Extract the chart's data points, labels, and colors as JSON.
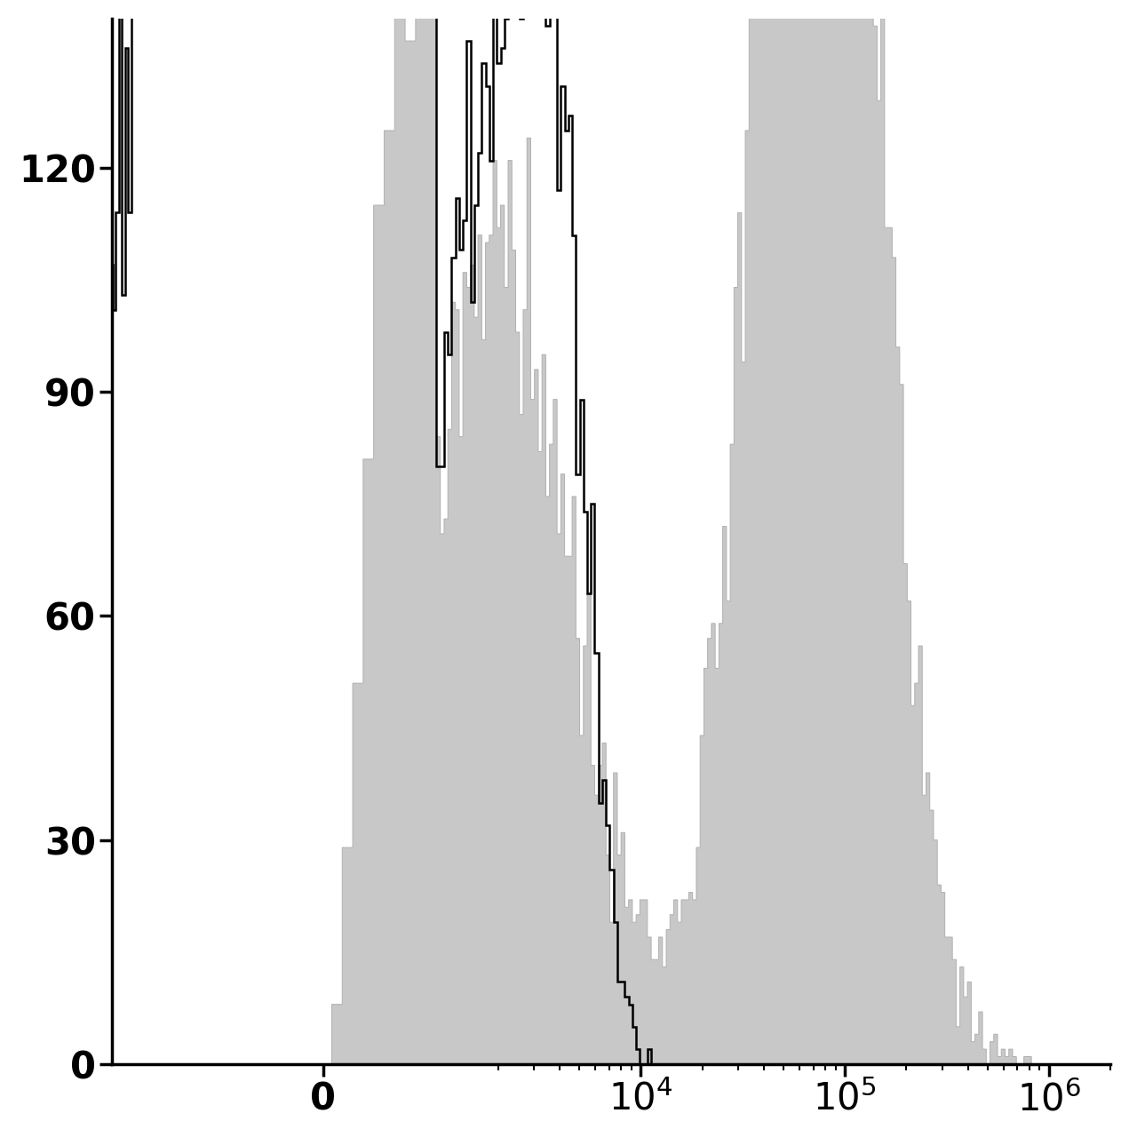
{
  "title": "",
  "xlabel": "",
  "ylabel": "",
  "yticks": [
    0,
    30,
    60,
    90,
    120
  ],
  "ylim": [
    0,
    140
  ],
  "background_color": "#ffffff",
  "filled_hist_color": "#c8c8c8",
  "filled_hist_edge_color": "#b0b0b0",
  "empty_hist_edge_color": "#000000",
  "seed_unstained": 42,
  "seed_stained": 99,
  "n_unstained": 15000,
  "n_stained": 15000,
  "linthresh": 1000,
  "linscale": 0.5
}
